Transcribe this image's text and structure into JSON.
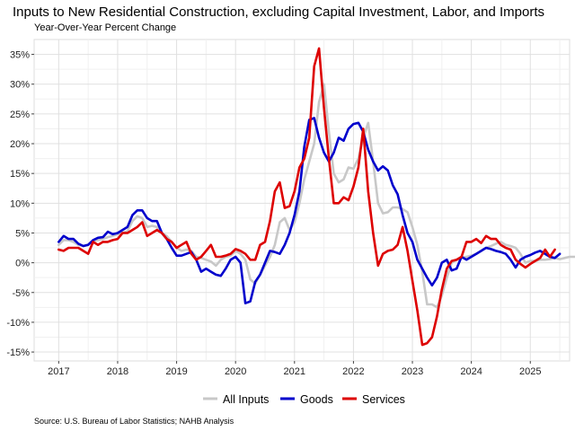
{
  "chart_data": {
    "type": "line",
    "title": "Inputs to New Residential Construction, excluding Capital Investment, Labor, and Imports",
    "subtitle": "Year-Over-Year Percent Change",
    "source": "Source: U.S. Bureau of Labor Statistics; NAHB Analysis",
    "x_start": "2017-01",
    "x_ticks": [
      "2017",
      "2018",
      "2019",
      "2020",
      "2021",
      "2022",
      "2023",
      "2024",
      "2025"
    ],
    "y_ticks": [
      "35%",
      "30%",
      "25%",
      "20%",
      "15%",
      "10%",
      "5%",
      "0%",
      "-5%",
      "-10%",
      "-15%"
    ],
    "y_tick_values": [
      35,
      30,
      25,
      20,
      15,
      10,
      5,
      0,
      -5,
      -10,
      -15
    ],
    "ylim": [
      -16.5,
      37.5
    ],
    "xlim": [
      "2016-08",
      "2025-09"
    ],
    "grid": true,
    "legend": "bottom",
    "series": [
      {
        "name": "All Inputs",
        "color": "#c8c8c8",
        "values": [
          3.0,
          3.8,
          3.8,
          3.5,
          3.0,
          2.8,
          3.0,
          3.6,
          3.8,
          4.0,
          4.3,
          4.5,
          4.8,
          5.0,
          5.3,
          7.0,
          7.8,
          7.5,
          6.0,
          6.2,
          6.0,
          5.0,
          4.5,
          3.5,
          2.5,
          2.0,
          2.2,
          2.0,
          1.0,
          0.8,
          0.5,
          0.2,
          -0.5,
          0.5,
          1.0,
          1.2,
          2.0,
          1.5,
          0.5,
          -2.8,
          -3.5,
          -2.0,
          -0.5,
          1.0,
          3.0,
          6.8,
          7.5,
          5.5,
          6.8,
          10.0,
          14.0,
          17.0,
          20.0,
          27.0,
          30.0,
          22.0,
          15.0,
          13.5,
          14.0,
          16.0,
          15.8,
          17.5,
          21.0,
          23.5,
          17.0,
          10.0,
          8.3,
          8.5,
          9.3,
          9.3,
          9.0,
          8.5,
          6.0,
          3.0,
          -1.5,
          -7.0,
          -7.0,
          -7.5,
          -5.5,
          -2.5,
          0.0,
          0.5,
          0.8,
          1.0,
          1.2,
          1.5,
          2.0,
          2.5,
          2.8,
          3.2,
          3.5,
          3.0,
          2.8,
          2.5,
          1.5,
          0.0,
          0.3,
          0.3,
          0.5,
          0.5,
          0.6,
          0.8,
          0.6,
          0.8,
          1.0,
          1.0
        ]
      },
      {
        "name": "Goods",
        "color": "#0000cc",
        "values": [
          3.5,
          4.5,
          4.0,
          4.0,
          3.2,
          2.8,
          3.0,
          3.8,
          4.2,
          4.3,
          5.2,
          4.8,
          5.0,
          5.5,
          6.0,
          8.0,
          8.8,
          8.8,
          7.5,
          7.0,
          7.0,
          5.0,
          4.0,
          2.5,
          1.2,
          1.2,
          1.5,
          1.8,
          0.5,
          -1.5,
          -1.0,
          -1.5,
          -2.0,
          -2.2,
          -1.0,
          0.5,
          1.0,
          0.0,
          -6.8,
          -6.5,
          -3.2,
          -2.0,
          0.0,
          2.0,
          1.8,
          1.5,
          3.0,
          5.0,
          8.0,
          12.0,
          19.5,
          24.0,
          24.3,
          21.0,
          18.5,
          17.0,
          18.5,
          21.0,
          20.5,
          22.5,
          23.3,
          23.5,
          22.0,
          19.0,
          17.0,
          15.5,
          16.2,
          15.5,
          13.0,
          11.5,
          8.0,
          5.0,
          3.5,
          0.5,
          -1.0,
          -2.5,
          -3.8,
          -2.5,
          0.0,
          0.5,
          -1.3,
          -1.0,
          1.0,
          0.5,
          1.0,
          1.5,
          2.0,
          2.5,
          2.3,
          2.0,
          1.8,
          1.5,
          0.5,
          -0.8,
          0.5,
          1.0,
          1.3,
          1.7,
          2.0,
          1.5,
          1.0,
          0.8,
          1.5
        ]
      },
      {
        "name": "Services",
        "color": "#dd0000",
        "values": [
          2.2,
          2.0,
          2.5,
          2.5,
          2.5,
          2.0,
          1.5,
          3.5,
          3.0,
          3.5,
          3.5,
          3.8,
          4.0,
          5.0,
          5.0,
          5.5,
          6.0,
          6.8,
          4.5,
          5.0,
          5.5,
          5.0,
          4.0,
          3.5,
          2.5,
          3.0,
          3.5,
          1.5,
          0.5,
          1.0,
          2.0,
          3.0,
          1.0,
          1.0,
          1.2,
          1.5,
          2.3,
          2.0,
          1.5,
          0.5,
          0.5,
          3.0,
          3.5,
          7.0,
          12.0,
          13.5,
          9.2,
          9.5,
          12.0,
          16.0,
          17.5,
          21.0,
          33.0,
          36.0,
          26.0,
          17.5,
          10.0,
          10.0,
          11.0,
          10.5,
          12.8,
          16.0,
          22.5,
          12.0,
          5.0,
          -0.5,
          1.5,
          2.0,
          2.2,
          3.0,
          6.0,
          2.0,
          -3.0,
          -8.0,
          -13.8,
          -13.5,
          -12.5,
          -9.0,
          -4.5,
          -1.0,
          0.3,
          0.5,
          1.0,
          3.5,
          3.5,
          4.0,
          3.3,
          4.5,
          4.0,
          4.0,
          3.0,
          2.5,
          2.2,
          0.5,
          -0.2,
          -0.8,
          -0.2,
          0.3,
          0.8,
          2.2,
          1.0,
          2.2
        ]
      }
    ]
  }
}
